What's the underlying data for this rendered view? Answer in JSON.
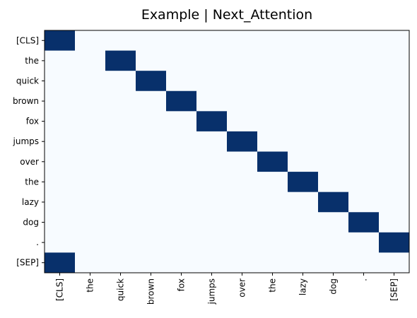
{
  "chart_data": {
    "type": "heatmap",
    "title": "Example | Next_Attention",
    "x_labels": [
      "[CLS]",
      "the",
      "quick",
      "brown",
      "fox",
      "jumps",
      "over",
      "the",
      "lazy",
      "dog",
      ".",
      "[SEP]"
    ],
    "y_labels": [
      "[CLS]",
      "the",
      "quick",
      "brown",
      "fox",
      "jumps",
      "over",
      "the",
      "lazy",
      "dog",
      ".",
      "[SEP]"
    ],
    "values": [
      [
        1,
        0,
        0,
        0,
        0,
        0,
        0,
        0,
        0,
        0,
        0,
        0
      ],
      [
        0,
        0,
        1,
        0,
        0,
        0,
        0,
        0,
        0,
        0,
        0,
        0
      ],
      [
        0,
        0,
        0,
        1,
        0,
        0,
        0,
        0,
        0,
        0,
        0,
        0
      ],
      [
        0,
        0,
        0,
        0,
        1,
        0,
        0,
        0,
        0,
        0,
        0,
        0
      ],
      [
        0,
        0,
        0,
        0,
        0,
        1,
        0,
        0,
        0,
        0,
        0,
        0
      ],
      [
        0,
        0,
        0,
        0,
        0,
        0,
        1,
        0,
        0,
        0,
        0,
        0
      ],
      [
        0,
        0,
        0,
        0,
        0,
        0,
        0,
        1,
        0,
        0,
        0,
        0
      ],
      [
        0,
        0,
        0,
        0,
        0,
        0,
        0,
        0,
        1,
        0,
        0,
        0
      ],
      [
        0,
        0,
        0,
        0,
        0,
        0,
        0,
        0,
        0,
        1,
        0,
        0
      ],
      [
        0,
        0,
        0,
        0,
        0,
        0,
        0,
        0,
        0,
        0,
        1,
        0
      ],
      [
        0,
        0,
        0,
        0,
        0,
        0,
        0,
        0,
        0,
        0,
        0,
        1
      ],
      [
        1,
        0,
        0,
        0,
        0,
        0,
        0,
        0,
        0,
        0,
        0,
        0
      ]
    ],
    "colormap": "Blues",
    "color_low": "#f7fbff",
    "color_high": "#08306b",
    "value_range": [
      0,
      1
    ],
    "grid": false,
    "legend": "none"
  }
}
